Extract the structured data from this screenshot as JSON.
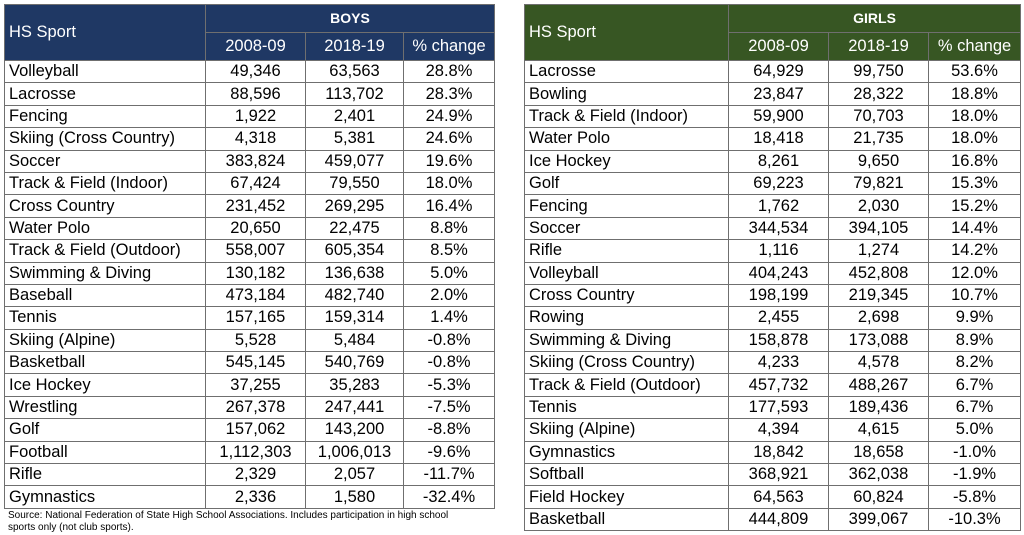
{
  "chart_data": [
    {
      "type": "table",
      "group": "BOYS",
      "columns": [
        "HS Sport",
        "2008-09",
        "2018-19",
        "% change"
      ],
      "rows": [
        [
          "Volleyball",
          "49,346",
          "63,563",
          "28.8%"
        ],
        [
          "Lacrosse",
          "88,596",
          "113,702",
          "28.3%"
        ],
        [
          "Fencing",
          "1,922",
          "2,401",
          "24.9%"
        ],
        [
          "Skiing (Cross Country)",
          "4,318",
          "5,381",
          "24.6%"
        ],
        [
          "Soccer",
          "383,824",
          "459,077",
          "19.6%"
        ],
        [
          "Track & Field (Indoor)",
          "67,424",
          "79,550",
          "18.0%"
        ],
        [
          "Cross Country",
          "231,452",
          "269,295",
          "16.4%"
        ],
        [
          "Water Polo",
          "20,650",
          "22,475",
          "8.8%"
        ],
        [
          "Track & Field (Outdoor)",
          "558,007",
          "605,354",
          "8.5%"
        ],
        [
          "Swimming & Diving",
          "130,182",
          "136,638",
          "5.0%"
        ],
        [
          "Baseball",
          "473,184",
          "482,740",
          "2.0%"
        ],
        [
          "Tennis",
          "157,165",
          "159,314",
          "1.4%"
        ],
        [
          "Skiing (Alpine)",
          "5,528",
          "5,484",
          "-0.8%"
        ],
        [
          "Basketball",
          "545,145",
          "540,769",
          "-0.8%"
        ],
        [
          "Ice Hockey",
          "37,255",
          "35,283",
          "-5.3%"
        ],
        [
          "Wrestling",
          "267,378",
          "247,441",
          "-7.5%"
        ],
        [
          "Golf",
          "157,062",
          "143,200",
          "-8.8%"
        ],
        [
          "Football",
          "1,112,303",
          "1,006,013",
          "-9.6%"
        ],
        [
          "Rifle",
          "2,329",
          "2,057",
          "-11.7%"
        ],
        [
          "Gymnastics",
          "2,336",
          "1,580",
          "-32.4%"
        ]
      ]
    },
    {
      "type": "table",
      "group": "GIRLS",
      "columns": [
        "HS Sport",
        "2008-09",
        "2018-19",
        "% change"
      ],
      "rows": [
        [
          "Lacrosse",
          "64,929",
          "99,750",
          "53.6%"
        ],
        [
          "Bowling",
          "23,847",
          "28,322",
          "18.8%"
        ],
        [
          "Track & Field (Indoor)",
          "59,900",
          "70,703",
          "18.0%"
        ],
        [
          "Water Polo",
          "18,418",
          "21,735",
          "18.0%"
        ],
        [
          "Ice Hockey",
          "8,261",
          "9,650",
          "16.8%"
        ],
        [
          "Golf",
          "69,223",
          "79,821",
          "15.3%"
        ],
        [
          "Fencing",
          "1,762",
          "2,030",
          "15.2%"
        ],
        [
          "Soccer",
          "344,534",
          "394,105",
          "14.4%"
        ],
        [
          "Rifle",
          "1,116",
          "1,274",
          "14.2%"
        ],
        [
          "Volleyball",
          "404,243",
          "452,808",
          "12.0%"
        ],
        [
          "Cross Country",
          "198,199",
          "219,345",
          "10.7%"
        ],
        [
          "Rowing",
          "2,455",
          "2,698",
          "9.9%"
        ],
        [
          "Swimming & Diving",
          "158,878",
          "173,088",
          "8.9%"
        ],
        [
          "Skiing (Cross Country)",
          "4,233",
          "4,578",
          "8.2%"
        ],
        [
          "Track & Field (Outdoor)",
          "457,732",
          "488,267",
          "6.7%"
        ],
        [
          "Tennis",
          "177,593",
          "189,436",
          "6.7%"
        ],
        [
          "Skiing (Alpine)",
          "4,394",
          "4,615",
          "5.0%"
        ],
        [
          "Gymnastics",
          "18,842",
          "18,658",
          "-1.0%"
        ],
        [
          "Softball",
          "368,921",
          "362,038",
          "-1.9%"
        ],
        [
          "Field Hockey",
          "64,563",
          "60,824",
          "-5.8%"
        ],
        [
          "Basketball",
          "444,809",
          "399,067",
          "-10.3%"
        ]
      ]
    }
  ],
  "source_note": "Source: National Federation of State High School Associations. Includes participation in high school sports only (not club sports).",
  "colors": {
    "boys_header": "#1f3864",
    "girls_header": "#375623"
  }
}
